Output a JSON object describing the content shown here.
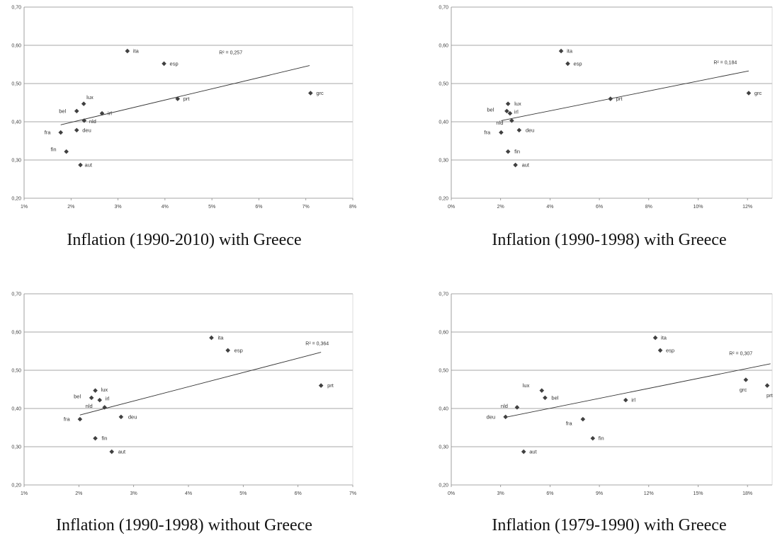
{
  "chart_data": [
    {
      "type": "scatter",
      "caption": "Inflation (1990-2010) with Greece",
      "annotation": "R² = 0,257",
      "xticks": [
        "1%",
        "2%",
        "3%",
        "4%",
        "5%",
        "6%",
        "7%",
        "8%"
      ],
      "yticks": [
        "0,20",
        "0,30",
        "0,40",
        "0,50",
        "0,60",
        "0,70"
      ],
      "xlim": [
        1,
        8
      ],
      "ylim": [
        0.2,
        0.7
      ],
      "points": [
        {
          "label": "ita",
          "x": 3.2,
          "y": 0.585
        },
        {
          "label": "esp",
          "x": 3.98,
          "y": 0.552
        },
        {
          "label": "grc",
          "x": 7.1,
          "y": 0.475
        },
        {
          "label": "prt",
          "x": 4.27,
          "y": 0.46
        },
        {
          "label": "lux",
          "x": 2.27,
          "y": 0.447
        },
        {
          "label": "bel",
          "x": 2.12,
          "y": 0.428
        },
        {
          "label": "irl",
          "x": 2.66,
          "y": 0.422
        },
        {
          "label": "nld",
          "x": 2.28,
          "y": 0.403
        },
        {
          "label": "deu",
          "x": 2.12,
          "y": 0.378
        },
        {
          "label": "fra",
          "x": 1.78,
          "y": 0.372
        },
        {
          "label": "fin",
          "x": 1.9,
          "y": 0.322
        },
        {
          "label": "aut",
          "x": 2.2,
          "y": 0.287
        }
      ],
      "trendline": [
        [
          1.78,
          0.392
        ],
        [
          7.08,
          0.547
        ]
      ]
    },
    {
      "type": "scatter",
      "caption": "Inflation (1990-1998) with Greece",
      "annotation": "R² = 0,184",
      "xticks": [
        "0%",
        "2%",
        "4%",
        "6%",
        "8%",
        "10%",
        "12%"
      ],
      "yticks": [
        "0,20",
        "0,30",
        "0,40",
        "0,50",
        "0,60",
        "0,70"
      ],
      "xlim": [
        0,
        13
      ],
      "ylim": [
        0.2,
        0.7
      ],
      "points": [
        {
          "label": "ita",
          "x": 4.45,
          "y": 0.585
        },
        {
          "label": "esp",
          "x": 4.72,
          "y": 0.552
        },
        {
          "label": "grc",
          "x": 12.05,
          "y": 0.475
        },
        {
          "label": "prt",
          "x": 6.45,
          "y": 0.46
        },
        {
          "label": "lux",
          "x": 2.3,
          "y": 0.447
        },
        {
          "label": "bel",
          "x": 2.25,
          "y": 0.428
        },
        {
          "label": "irl",
          "x": 2.38,
          "y": 0.422
        },
        {
          "label": "nld",
          "x": 2.45,
          "y": 0.403
        },
        {
          "label": "deu",
          "x": 2.75,
          "y": 0.378
        },
        {
          "label": "fra",
          "x": 2.02,
          "y": 0.372
        },
        {
          "label": "fin",
          "x": 2.3,
          "y": 0.322
        },
        {
          "label": "aut",
          "x": 2.6,
          "y": 0.287
        }
      ],
      "trendline": [
        [
          2.02,
          0.403
        ],
        [
          12.05,
          0.533
        ]
      ]
    },
    {
      "type": "scatter",
      "caption": "Inflation (1990-1998) without Greece",
      "annotation": "R² = 0,364",
      "xticks": [
        "1%",
        "2%",
        "3%",
        "4%",
        "5%",
        "6%",
        "7%"
      ],
      "yticks": [
        "0,20",
        "0,30",
        "0,40",
        "0,50",
        "0,60",
        "0,70"
      ],
      "xlim": [
        1,
        7
      ],
      "ylim": [
        0.2,
        0.7
      ],
      "points": [
        {
          "label": "ita",
          "x": 4.42,
          "y": 0.585
        },
        {
          "label": "esp",
          "x": 4.72,
          "y": 0.552
        },
        {
          "label": "prt",
          "x": 6.42,
          "y": 0.46
        },
        {
          "label": "lux",
          "x": 2.3,
          "y": 0.447
        },
        {
          "label": "bel",
          "x": 2.23,
          "y": 0.428
        },
        {
          "label": "irl",
          "x": 2.38,
          "y": 0.422
        },
        {
          "label": "nld",
          "x": 2.47,
          "y": 0.403
        },
        {
          "label": "deu",
          "x": 2.77,
          "y": 0.378
        },
        {
          "label": "fra",
          "x": 2.02,
          "y": 0.372
        },
        {
          "label": "fin",
          "x": 2.3,
          "y": 0.322
        },
        {
          "label": "aut",
          "x": 2.6,
          "y": 0.287
        }
      ],
      "trendline": [
        [
          2.02,
          0.383
        ],
        [
          6.42,
          0.547
        ]
      ]
    },
    {
      "type": "scatter",
      "caption": "Inflation (1979-1990) with Greece",
      "annotation": "R² = 0,307",
      "xticks": [
        "0%",
        "3%",
        "6%",
        "9%",
        "12%",
        "15%",
        "18%"
      ],
      "yticks": [
        "0,20",
        "0,30",
        "0,40",
        "0,50",
        "0,60",
        "0,70"
      ],
      "xlim": [
        0,
        19.5
      ],
      "ylim": [
        0.2,
        0.7
      ],
      "points": [
        {
          "label": "ita",
          "x": 12.4,
          "y": 0.585
        },
        {
          "label": "esp",
          "x": 12.7,
          "y": 0.552
        },
        {
          "label": "grc",
          "x": 17.9,
          "y": 0.475
        },
        {
          "label": "prt",
          "x": 19.2,
          "y": 0.46
        },
        {
          "label": "lux",
          "x": 5.5,
          "y": 0.447
        },
        {
          "label": "bel",
          "x": 5.7,
          "y": 0.428
        },
        {
          "label": "irl",
          "x": 10.6,
          "y": 0.422
        },
        {
          "label": "nld",
          "x": 4.0,
          "y": 0.403
        },
        {
          "label": "deu",
          "x": 3.3,
          "y": 0.378
        },
        {
          "label": "fra",
          "x": 8.0,
          "y": 0.372
        },
        {
          "label": "fin",
          "x": 8.6,
          "y": 0.322
        },
        {
          "label": "aut",
          "x": 4.4,
          "y": 0.287
        }
      ],
      "trendline": [
        [
          3.3,
          0.377
        ],
        [
          19.4,
          0.517
        ]
      ]
    }
  ]
}
